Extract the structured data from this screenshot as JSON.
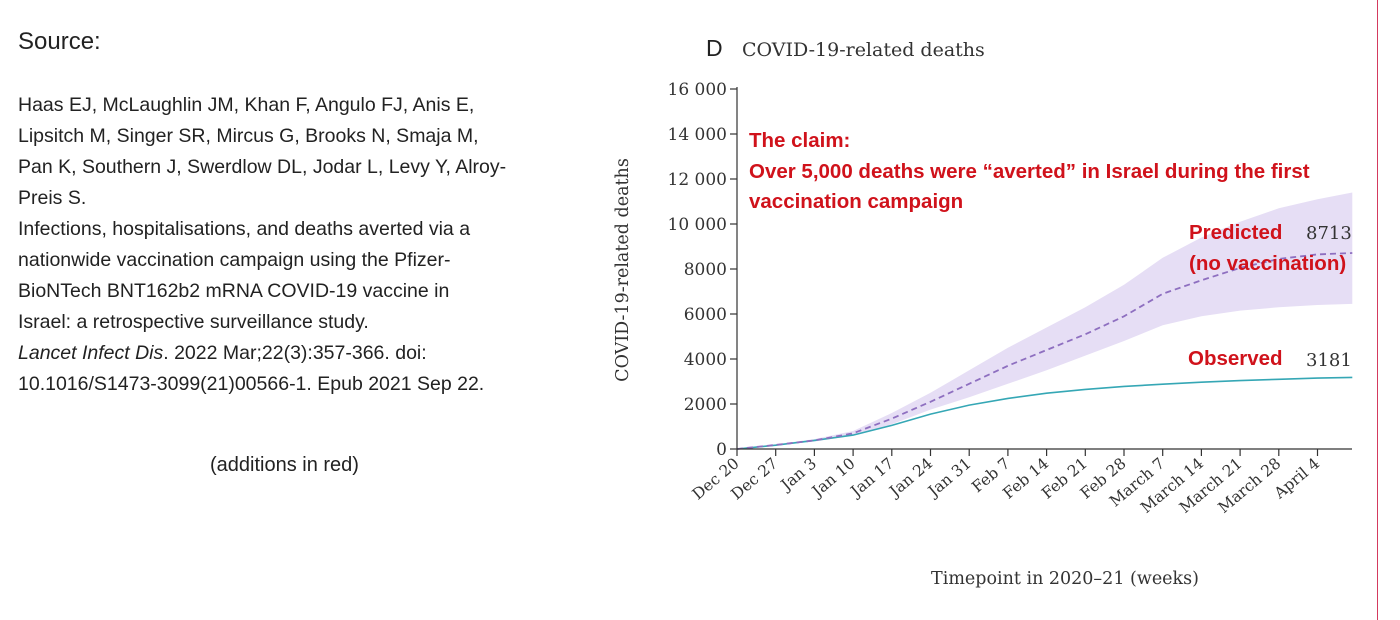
{
  "source": {
    "label": "Source:",
    "lines": [
      "Haas EJ, McLaughlin JM, Khan F, Angulo FJ, Anis E,",
      "Lipsitch M, Singer SR, Mircus G, Brooks N, Smaja M,",
      "Pan K, Southern J, Swerdlow DL, Jodar L, Levy Y, Alroy-",
      "Preis S.",
      "Infections, hospitalisations, and deaths averted via a",
      "nationwide vaccination campaign using the Pfizer-",
      "BioNTech BNT162b2 mRNA COVID-19 vaccine in",
      "Israel: a retrospective surveillance study."
    ],
    "journal": "Lancet Infect Dis",
    "journal_rest": ". 2022 Mar;22(3):357-366. doi:",
    "doi_line": "10.1016/S1473-3099(21)00566-1. Epub 2021 Sep 22.",
    "additions_note": "(additions in red)"
  },
  "annotations": {
    "claim_heading": "The claim:",
    "claim_line1": "Over 5,000 deaths were “averted” in Israel during the first",
    "claim_line2": "vaccination campaign",
    "predicted_line1": "Predicted",
    "predicted_line2": "(no vaccination)",
    "observed": "Observed",
    "color": "#d0121b"
  },
  "chart_data": {
    "type": "line",
    "panel_letter": "D",
    "title": "COVID-19-related deaths",
    "xlabel": "Timepoint in 2020–21 (weeks)",
    "ylabel": "COVID-19-related deaths",
    "ylim": [
      0,
      16000
    ],
    "y_ticks": [
      0,
      2000,
      4000,
      6000,
      8000,
      10000,
      12000,
      14000,
      16000
    ],
    "y_tick_labels": [
      "0",
      "2000",
      "4000",
      "6000",
      "8000",
      "10 000",
      "12 000",
      "14 000",
      "16 000"
    ],
    "categories": [
      "Dec 20",
      "Dec 27",
      "Jan 3",
      "Jan 10",
      "Jan 17",
      "Jan 24",
      "Jan 31",
      "Feb 7",
      "Feb 14",
      "Feb 21",
      "Feb 28",
      "March 7",
      "March 14",
      "March 21",
      "March 28",
      "April 4"
    ],
    "series": [
      {
        "name": "Observed",
        "style": "solid",
        "color": "#35a7b5",
        "x": [
          0,
          1,
          2,
          3,
          4,
          5,
          6,
          7,
          8,
          9,
          10,
          11,
          12,
          13,
          14,
          15,
          15.9
        ],
        "values": [
          0,
          170,
          380,
          620,
          1050,
          1550,
          1950,
          2250,
          2480,
          2650,
          2780,
          2880,
          2970,
          3040,
          3100,
          3150,
          3181
        ],
        "end_label": "3181"
      },
      {
        "name": "Predicted",
        "style": "dashed",
        "color": "#8e6fc0",
        "x": [
          0,
          1,
          2,
          3,
          4,
          5,
          6,
          7,
          8,
          9,
          10,
          11,
          12,
          13,
          14,
          15,
          15.9
        ],
        "values": [
          0,
          180,
          380,
          700,
          1350,
          2100,
          2900,
          3700,
          4400,
          5100,
          5900,
          6900,
          7500,
          8050,
          8450,
          8650,
          8713
        ],
        "lower": [
          0,
          160,
          330,
          600,
          1100,
          1750,
          2300,
          2900,
          3500,
          4150,
          4800,
          5500,
          5900,
          6150,
          6300,
          6400,
          6450
        ],
        "upper": [
          0,
          210,
          440,
          800,
          1600,
          2500,
          3500,
          4500,
          5400,
          6300,
          7300,
          8500,
          9400,
          10100,
          10700,
          11100,
          11400
        ],
        "band_color": "#e6def5",
        "end_label": "8713"
      }
    ]
  }
}
